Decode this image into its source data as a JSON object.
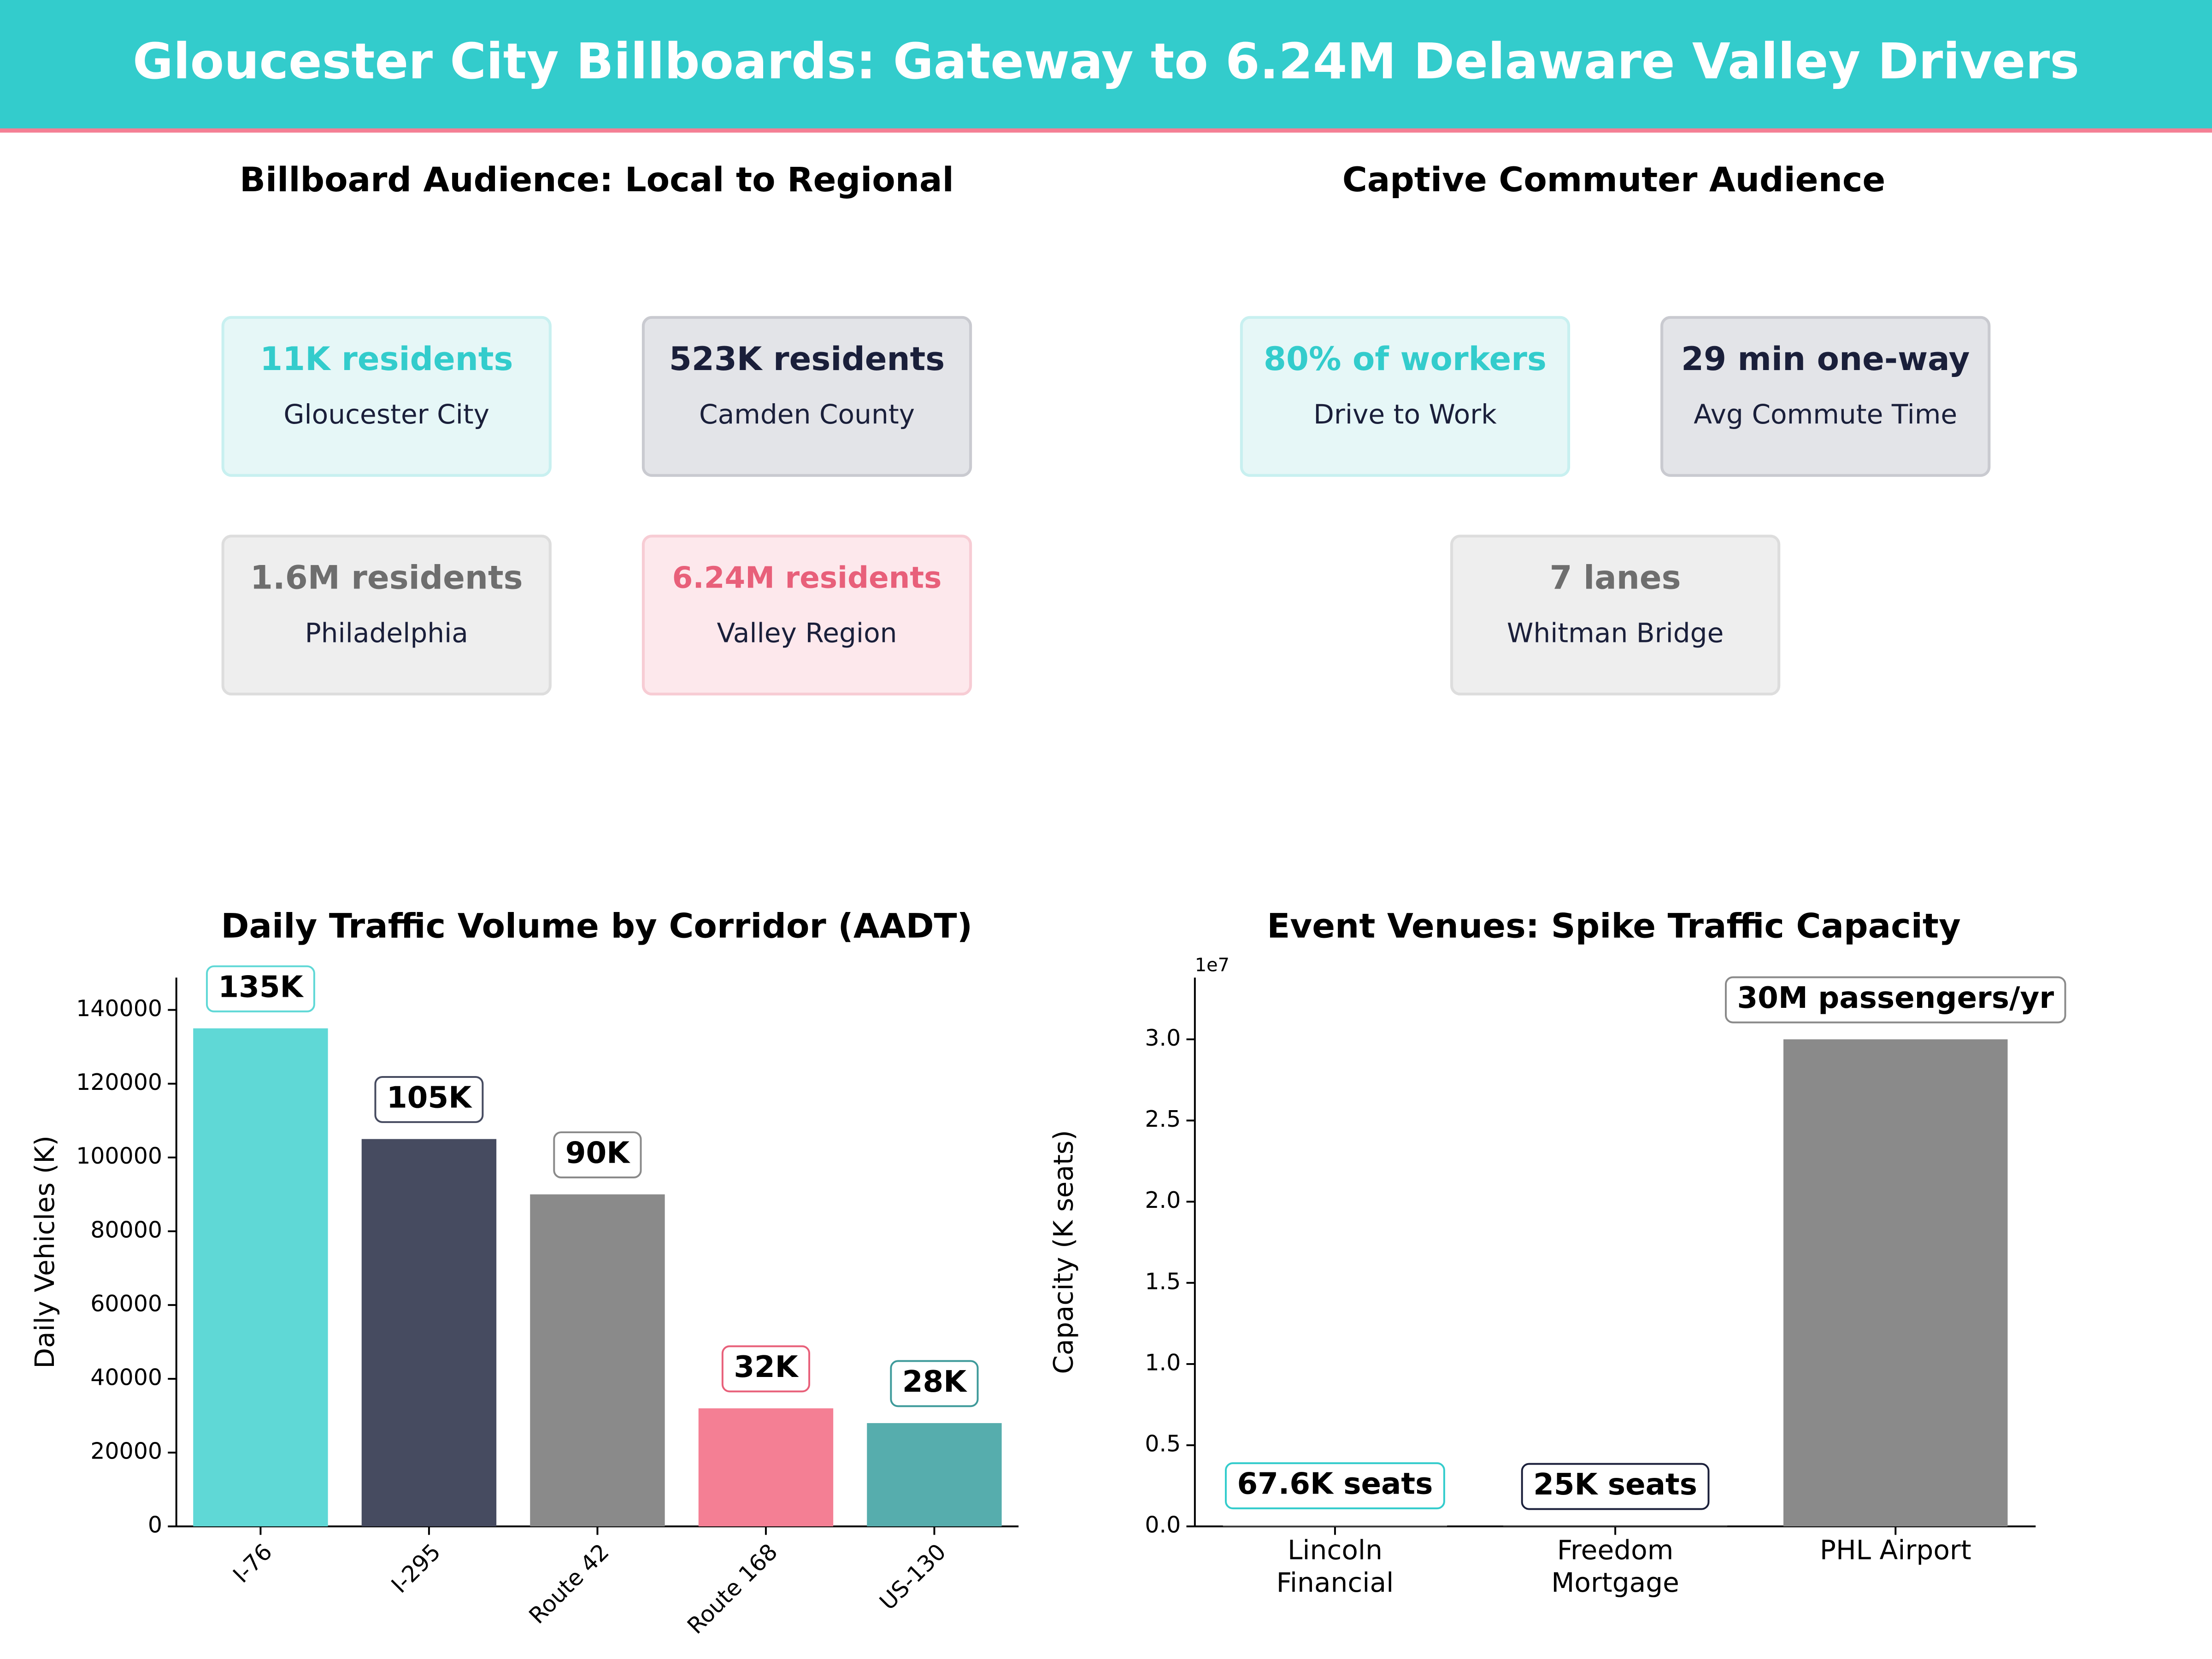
{
  "header": {
    "title": "Gloucester City Billboards: Gateway to 6.24M Delaware Valley Drivers"
  },
  "panels": [
    {
      "title": "Billboard Audience: Local to Regional",
      "cards": [
        {
          "value": "11K residents",
          "label": "Gloucester City",
          "color": "#33cccc",
          "bg": "#e6f7f7",
          "border": "#c8f0f0"
        },
        {
          "value": "523K residents",
          "label": "Camden County",
          "color": "#1a1f3a",
          "bg": "#e3e4e8",
          "border": "#c9cad0"
        },
        {
          "value": "1.6M residents",
          "label": "Philadelphia",
          "color": "#6e6e6e",
          "bg": "#eeeeee",
          "border": "#dddddd"
        },
        {
          "value": "6.24M residents",
          "label": "Valley Region",
          "color": "#e8607a",
          "bg": "#fde8ec",
          "border": "#f7ccd4"
        }
      ]
    },
    {
      "title": "Captive Commuter Audience",
      "cards": [
        {
          "value": "80% of workers",
          "label": "Drive to Work",
          "color": "#33cccc",
          "bg": "#e6f7f7",
          "border": "#c8f0f0"
        },
        {
          "value": "29 min one-way",
          "label": "Avg Commute Time",
          "color": "#1a1f3a",
          "bg": "#e3e4e8",
          "border": "#c9cad0"
        },
        {
          "value": "7 lanes",
          "label": "Whitman Bridge",
          "color": "#6e6e6e",
          "bg": "#eeeeee",
          "border": "#dddddd"
        }
      ]
    }
  ],
  "chart_data": [
    {
      "type": "bar",
      "title": "Daily Traffic Volume by Corridor (AADT)",
      "y_label": "Daily Vehicles (K)",
      "categories": [
        "I-76",
        "I-295",
        "Route 42",
        "Route 168",
        "US-130"
      ],
      "values": [
        135000,
        105000,
        90000,
        32000,
        28000
      ],
      "value_labels": [
        "135K",
        "105K",
        "90K",
        "32K",
        "28K"
      ],
      "colors": [
        "#5fd8d6",
        "#464b60",
        "#8a8a8a",
        "#f47f94",
        "#56adad"
      ],
      "label_colors": [
        "#5fd8d6",
        "#464b60",
        "#8a8a8a",
        "#e8607a",
        "#3e9a9a"
      ],
      "ylim": [
        0,
        148750
      ],
      "yticks": [
        0,
        20000,
        40000,
        60000,
        80000,
        100000,
        120000,
        140000
      ],
      "rotate_x_labels": true
    },
    {
      "type": "bar",
      "title": "Event Venues: Spike Traffic Capacity",
      "y_label": "Capacity (K seats)",
      "categories": [
        "Lincoln\nFinancial",
        "Freedom\nMortgage",
        "PHL Airport"
      ],
      "values": [
        67600,
        25000,
        30000000
      ],
      "value_labels": [
        "67.6K seats",
        "25K seats",
        "30M passengers/yr"
      ],
      "colors": [
        "#8a8a8a",
        "#8a8a8a",
        "#8a8a8a"
      ],
      "label_colors": [
        "#33cccc",
        "#1a1f3a",
        "#8a8a8a"
      ],
      "ylim": [
        0,
        33800000
      ],
      "y_offset_label": "1e7",
      "yticks": [
        {
          "value": 0,
          "label": "0.0"
        },
        {
          "value": 5000000,
          "label": "0.5"
        },
        {
          "value": 10000000,
          "label": "1.0"
        },
        {
          "value": 15000000,
          "label": "1.5"
        },
        {
          "value": 20000000,
          "label": "2.0"
        },
        {
          "value": 25000000,
          "label": "2.5"
        },
        {
          "value": 30000000,
          "label": "3.0"
        }
      ],
      "rotate_x_labels": false
    }
  ]
}
